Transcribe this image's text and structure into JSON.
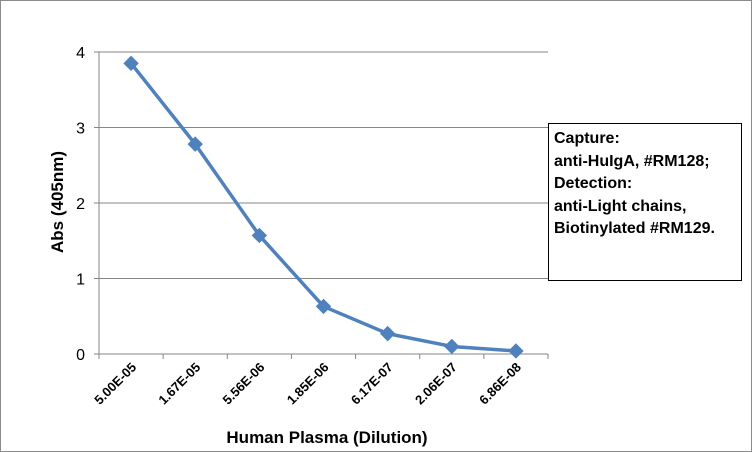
{
  "chart_data": {
    "type": "line",
    "categories": [
      "5.00E-05",
      "1.67E-05",
      "5.56E-06",
      "1.85E-06",
      "6.17E-07",
      "2.06E-07",
      "6.86E-08"
    ],
    "series": [
      {
        "values": [
          3.85,
          2.78,
          1.57,
          0.63,
          0.27,
          0.1,
          0.04
        ],
        "color": "#4f81bd",
        "marker": "diamond"
      }
    ],
    "xlabel": "Human Plasma (Dilution)",
    "ylabel": "Abs (405nm)",
    "ylim": [
      0,
      4
    ],
    "yticks": [
      "0",
      "1",
      "2",
      "3",
      "4"
    ],
    "grid": "horizontal",
    "legend": "none",
    "annotation": [
      "Capture:",
      "anti-HuIgA, #RM128;",
      "Detection:",
      "anti-Light chains,",
      "Biotinylated #RM129."
    ]
  }
}
